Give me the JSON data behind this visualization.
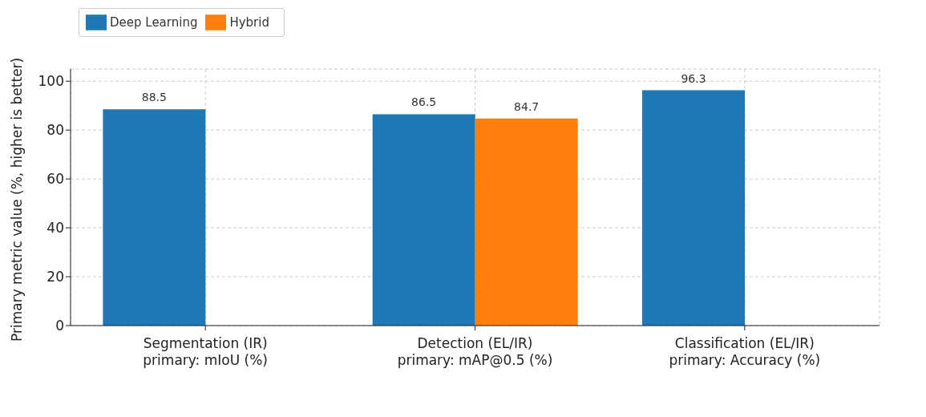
{
  "chart_data": {
    "type": "bar",
    "ylabel": "Primary metric value (%, higher is better)",
    "categories": [
      "Segmentation (IR)\nprimary: mIoU (%)",
      "Detection (EL/IR)\nprimary: mAP@0.5 (%)",
      "Classification (EL/IR)\nprimary: Accuracy (%)"
    ],
    "series": [
      {
        "name": "Deep Learning",
        "color": "#1f77b4",
        "values": [
          88.5,
          86.5,
          96.3
        ]
      },
      {
        "name": "Hybrid",
        "color": "#ff7f0e",
        "values": [
          null,
          84.7,
          null
        ]
      }
    ],
    "ylim": [
      0,
      105
    ],
    "yticks": [
      0,
      20,
      40,
      60,
      80,
      100
    ],
    "grid": true,
    "legend": "top left",
    "data_labels": true
  }
}
